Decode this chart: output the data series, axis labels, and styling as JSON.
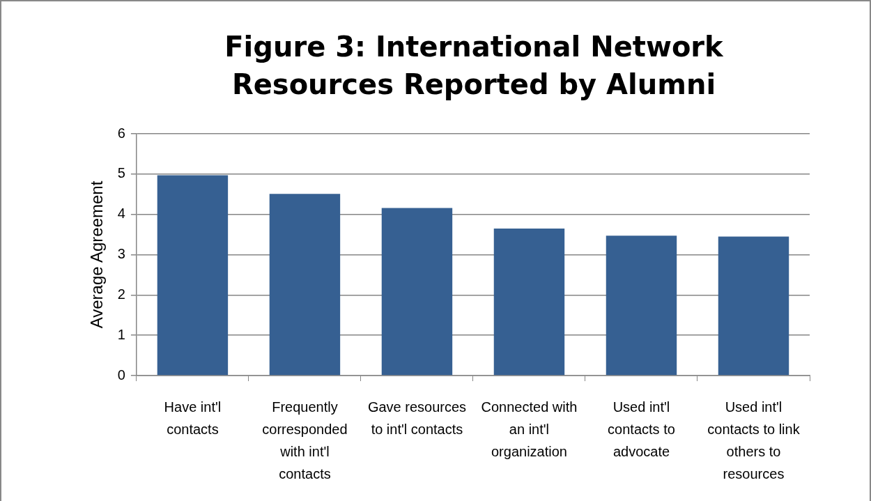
{
  "chart_data": {
    "type": "bar",
    "title": "Figure 3: International Network Resources Reported by Alumni",
    "ylabel": "Average Agreement",
    "categories": [
      "Have int'l contacts",
      "Frequently corresponded with int'l contacts",
      "Gave resources to int'l contacts",
      "Connected with an int'l organization",
      "Used int'l contacts to advocate",
      "Used int'l contacts to link others to resources"
    ],
    "values": [
      4.97,
      4.51,
      4.16,
      3.65,
      3.47,
      3.45
    ],
    "color": "#366092",
    "ylim": [
      0,
      6
    ],
    "yticks": [
      0,
      1,
      2,
      3,
      4,
      5,
      6
    ],
    "grid": "y",
    "legend": false
  }
}
